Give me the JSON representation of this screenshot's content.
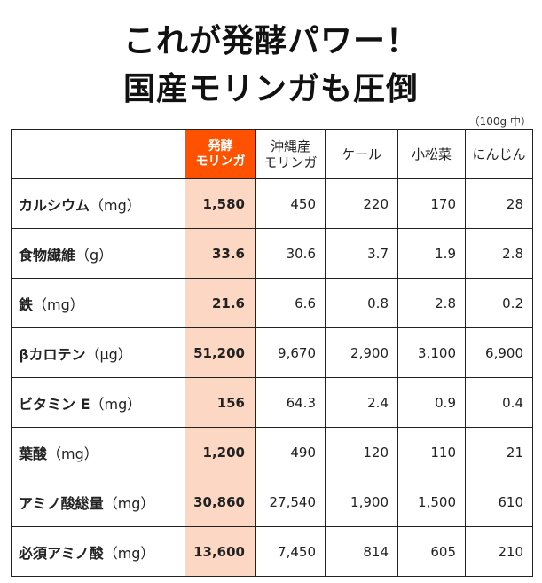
{
  "title": {
    "line1": "これが発酵パワー！",
    "line2": "国産モリンガも圧倒"
  },
  "unit_note": "（100g 中）",
  "table": {
    "headers": [
      {
        "line1": "発酵",
        "line2": "モリンガ"
      },
      {
        "line1": "沖縄産",
        "line2": "モリンガ"
      },
      {
        "line1": "ケール",
        "line2": ""
      },
      {
        "line1": "小松菜",
        "line2": ""
      },
      {
        "line1": "にんじん",
        "line2": ""
      }
    ],
    "rows": [
      {
        "name": "カルシウム",
        "unit": "（mg）",
        "values": [
          "1,580",
          "450",
          "220",
          "170",
          "28"
        ]
      },
      {
        "name": "食物繊維",
        "unit": "（g）",
        "values": [
          "33.6",
          "30.6",
          "3.7",
          "1.9",
          "2.8"
        ]
      },
      {
        "name": "鉄",
        "unit": "（mg）",
        "values": [
          "21.6",
          "6.6",
          "0.8",
          "2.8",
          "0.2"
        ]
      },
      {
        "name": "βカロテン",
        "unit": "（μg）",
        "values": [
          "51,200",
          "9,670",
          "2,900",
          "3,100",
          "6,900"
        ]
      },
      {
        "name": "ビタミン E",
        "unit": "（mg）",
        "values": [
          "156",
          "64.3",
          "2.4",
          "0.9",
          "0.4"
        ]
      },
      {
        "name": "葉酸",
        "unit": "（mg）",
        "values": [
          "1,200",
          "490",
          "120",
          "110",
          "21"
        ]
      },
      {
        "name": "アミノ酸総量",
        "unit": "（mg）",
        "values": [
          "30,860",
          "27,540",
          "1,900",
          "1,500",
          "610"
        ]
      },
      {
        "name": "必須アミノ酸",
        "unit": "（mg）",
        "values": [
          "13,600",
          "7,450",
          "814",
          "605",
          "210"
        ]
      }
    ]
  },
  "colors": {
    "highlight_header": "#ff5200",
    "highlight_column": "#fcd8c4"
  }
}
